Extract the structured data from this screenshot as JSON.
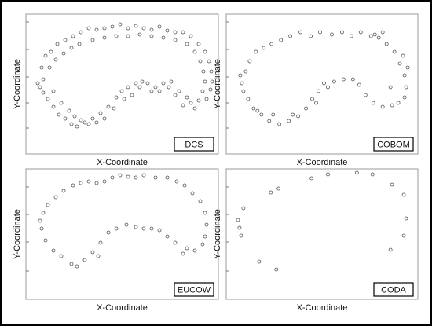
{
  "chart_data": [
    {
      "type": "scatter",
      "label": "DCS",
      "xlabel": "X-Coordinate",
      "ylabel": "Y-Coordinate",
      "color": "#555555",
      "xlim": [
        0,
        245
      ],
      "ylim": [
        0,
        178
      ],
      "yticks": [
        33,
        65,
        98,
        133,
        168
      ],
      "x": [
        15,
        20,
        25,
        32,
        40,
        50,
        60,
        70,
        80,
        90,
        100,
        110,
        120,
        130,
        140,
        150,
        160,
        170,
        180,
        190,
        200,
        210,
        220,
        228,
        233,
        236,
        237,
        235,
        22,
        30,
        38,
        48,
        58,
        68,
        85,
        100,
        115,
        130,
        145,
        160,
        175,
        190,
        205,
        215,
        222,
        226,
        228,
        225,
        230,
        220,
        210,
        200,
        190,
        182,
        175,
        165,
        155,
        148,
        140,
        130,
        122,
        115,
        105,
        95,
        85,
        75,
        65,
        58,
        50,
        42,
        35,
        28,
        22,
        18,
        215,
        205,
        195,
        185,
        170,
        160,
        145,
        135,
        125,
        112,
        100,
        90,
        80,
        70,
        62,
        55,
        45,
        35
      ],
      "values": [
        90,
        110,
        125,
        130,
        140,
        145,
        150,
        155,
        160,
        158,
        160,
        162,
        165,
        160,
        163,
        160,
        158,
        162,
        157,
        155,
        155,
        150,
        140,
        130,
        118,
        105,
        92,
        82,
        95,
        110,
        120,
        128,
        135,
        140,
        145,
        148,
        150,
        150,
        152,
        150,
        148,
        145,
        140,
        130,
        118,
        105,
        92,
        80,
        70,
        68,
        65,
        62,
        75,
        85,
        90,
        85,
        90,
        92,
        90,
        85,
        80,
        72,
        60,
        52,
        45,
        40,
        35,
        38,
        45,
        50,
        60,
        70,
        78,
        85,
        58,
        72,
        80,
        92,
        80,
        80,
        85,
        75,
        70,
        58,
        45,
        40,
        38,
        43,
        48,
        55,
        65,
        80
      ]
    },
    {
      "type": "scatter",
      "label": "COBOM",
      "xlabel": "X-Coordinate",
      "ylabel": "Y-Coordinate",
      "color": "#555555",
      "xlim": [
        0,
        245
      ],
      "ylim": [
        0,
        178
      ],
      "yticks": [
        33,
        65,
        98,
        133,
        168
      ],
      "x": [
        20,
        25,
        30,
        38,
        48,
        58,
        70,
        82,
        95,
        108,
        120,
        135,
        148,
        160,
        172,
        185,
        195,
        205,
        215,
        222,
        228,
        230,
        228,
        232,
        226,
        200,
        190,
        220,
        212,
        200,
        188,
        178,
        170,
        162,
        150,
        138,
        125,
        118,
        110,
        102,
        92,
        80,
        68,
        55,
        45,
        35,
        28,
        22,
        18,
        130,
        115,
        85,
        60,
        40,
        210
      ],
      "values": [
        90,
        105,
        118,
        130,
        135,
        140,
        145,
        150,
        155,
        150,
        155,
        152,
        155,
        150,
        155,
        150,
        148,
        140,
        130,
        115,
        100,
        85,
        72,
        110,
        125,
        155,
        152,
        65,
        62,
        60,
        65,
        75,
        88,
        95,
        95,
        92,
        90,
        80,
        70,
        58,
        48,
        42,
        38,
        42,
        50,
        58,
        70,
        80,
        100,
        85,
        65,
        50,
        50,
        55,
        85
      ]
    },
    {
      "type": "scatter",
      "label": "EUCOW",
      "xlabel": "X-Coordinate",
      "ylabel": "Y-Coordinate",
      "color": "#555555",
      "xlim": [
        0,
        245
      ],
      "ylim": [
        0,
        166
      ],
      "yticks": [
        36,
        73,
        108,
        143
      ],
      "x": [
        18,
        22,
        28,
        38,
        48,
        60,
        70,
        80,
        90,
        100,
        110,
        120,
        130,
        140,
        150,
        165,
        180,
        192,
        202,
        212,
        222,
        228,
        230,
        228,
        225,
        215,
        205,
        190,
        180,
        170,
        160,
        150,
        140,
        128,
        115,
        105,
        95,
        85,
        75,
        65,
        58,
        45,
        35,
        25,
        20,
        200,
        92
      ],
      "values": [
        100,
        110,
        120,
        130,
        138,
        145,
        148,
        150,
        148,
        150,
        155,
        158,
        156,
        155,
        158,
        155,
        155,
        150,
        145,
        135,
        125,
        110,
        95,
        80,
        70,
        62,
        65,
        72,
        80,
        88,
        90,
        90,
        92,
        95,
        90,
        85,
        72,
        60,
        50,
        42,
        45,
        55,
        62,
        75,
        90,
        58,
        55
      ]
    },
    {
      "type": "scatter",
      "label": "CODA",
      "xlabel": "X-Coordinate",
      "ylabel": "Y-Coordinate",
      "color": "#555555",
      "xlim": [
        0,
        245
      ],
      "ylim": [
        0,
        166
      ],
      "yticks": [
        36,
        73,
        108,
        143
      ],
      "x": [
        15,
        22,
        17,
        19,
        42,
        57,
        67,
        64,
        109,
        130,
        167,
        187,
        210,
        212,
        227,
        230,
        227
      ],
      "values": [
        101,
        116,
        91,
        81,
        48,
        136,
        141,
        38,
        154,
        159,
        161,
        159,
        63,
        146,
        133,
        103,
        81
      ]
    }
  ]
}
